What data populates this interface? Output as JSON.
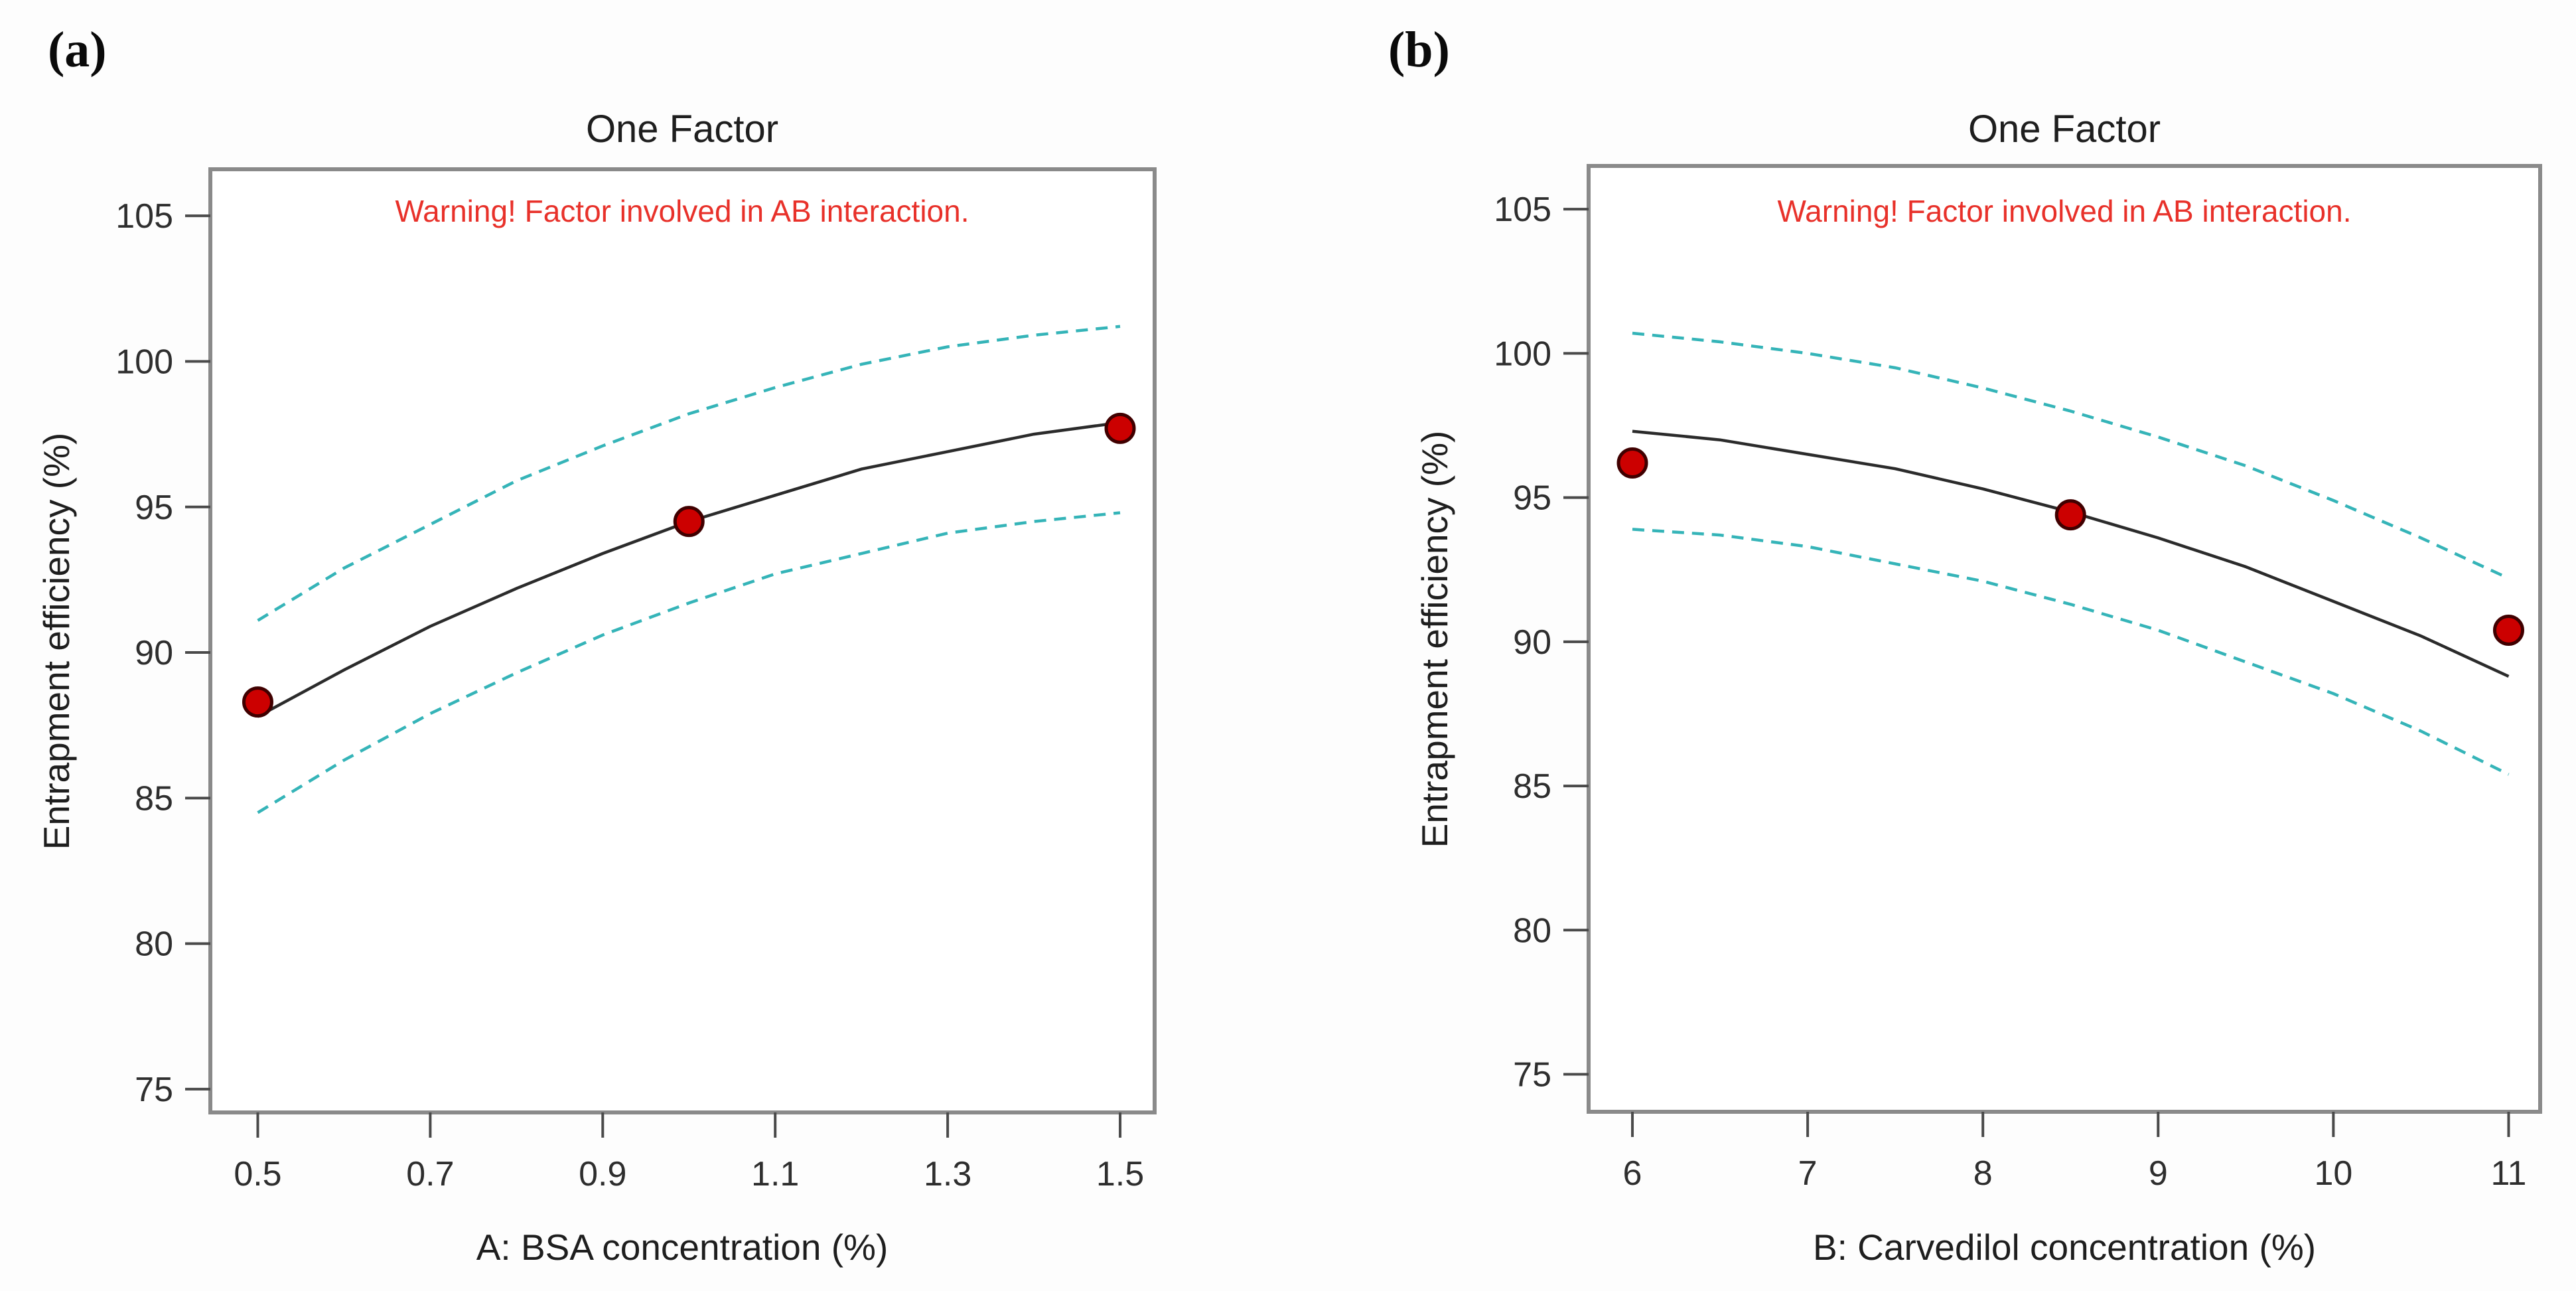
{
  "figure": {
    "background": "#fdfdfd",
    "description": "Two one-factor effect plots with confidence bands and design points"
  },
  "colors": {
    "mean_line": "#2b2b2b",
    "confidence_band": "#35b4b8",
    "design_point_fill": "#cc0000",
    "design_point_edge": "#400000",
    "warning_text": "#e8312a",
    "axis_frame": "#8a8a8a",
    "tick_text": "#2e2e2e"
  },
  "chart_data": [
    {
      "id": "a",
      "panel_label": "(a)",
      "type": "line",
      "title": "One Factor",
      "annotation": "Warning! Factor involved in AB interaction.",
      "xlabel": "A: BSA concentration (%)",
      "ylabel": "Entrapment efficiency (%)",
      "grid": "off",
      "legend": "none",
      "xlim": [
        0.445,
        1.54
      ],
      "ylim": [
        74.2,
        106.6
      ],
      "xticks": [
        0.5,
        0.7,
        0.9,
        1.1,
        1.3,
        1.5
      ],
      "xtick_labels": [
        "0.5",
        "0.7",
        "0.9",
        "1.1",
        "1.3",
        "1.5"
      ],
      "yticks": [
        75,
        80,
        85,
        90,
        95,
        100,
        105
      ],
      "ytick_labels": [
        "75",
        "80",
        "85",
        "90",
        "95",
        "100",
        "105"
      ],
      "design_points": [
        [
          0.5,
          88.3
        ],
        [
          1.0,
          94.5
        ],
        [
          1.5,
          97.7
        ]
      ],
      "series": [
        {
          "name": "predicted mean",
          "style": "solid",
          "points": [
            [
              0.5,
              87.8
            ],
            [
              0.6,
              89.4
            ],
            [
              0.7,
              90.9
            ],
            [
              0.8,
              92.2
            ],
            [
              0.9,
              93.4
            ],
            [
              1.0,
              94.5
            ],
            [
              1.1,
              95.4
            ],
            [
              1.2,
              96.3
            ],
            [
              1.3,
              96.9
            ],
            [
              1.4,
              97.5
            ],
            [
              1.5,
              97.9
            ]
          ]
        },
        {
          "name": "confidence band upper",
          "style": "dashed",
          "points": [
            [
              0.5,
              91.1
            ],
            [
              0.6,
              92.9
            ],
            [
              0.7,
              94.4
            ],
            [
              0.8,
              95.9
            ],
            [
              0.9,
              97.1
            ],
            [
              1.0,
              98.2
            ],
            [
              1.1,
              99.1
            ],
            [
              1.2,
              99.9
            ],
            [
              1.3,
              100.5
            ],
            [
              1.4,
              100.9
            ],
            [
              1.5,
              101.2
            ]
          ]
        },
        {
          "name": "confidence band lower",
          "style": "dashed",
          "points": [
            [
              0.5,
              84.5
            ],
            [
              0.6,
              86.3
            ],
            [
              0.7,
              87.9
            ],
            [
              0.8,
              89.3
            ],
            [
              0.9,
              90.6
            ],
            [
              1.0,
              91.7
            ],
            [
              1.1,
              92.7
            ],
            [
              1.2,
              93.4
            ],
            [
              1.3,
              94.1
            ],
            [
              1.4,
              94.5
            ],
            [
              1.5,
              94.8
            ]
          ]
        }
      ]
    },
    {
      "id": "b",
      "panel_label": "(b)",
      "type": "line",
      "title": "One Factor",
      "annotation": "Warning! Factor involved in AB interaction.",
      "xlabel": "B: Carvedilol concentration (%)",
      "ylabel": "Entrapment efficiency (%)",
      "grid": "off",
      "legend": "none",
      "xlim": [
        5.75,
        11.18
      ],
      "ylim": [
        73.7,
        106.5
      ],
      "xticks": [
        6,
        7,
        8,
        9,
        10,
        11
      ],
      "xtick_labels": [
        "6",
        "7",
        "8",
        "9",
        "10",
        "11"
      ],
      "yticks": [
        75,
        80,
        85,
        90,
        95,
        100,
        105
      ],
      "ytick_labels": [
        "75",
        "80",
        "85",
        "90",
        "95",
        "100",
        "105"
      ],
      "design_points": [
        [
          6,
          96.2
        ],
        [
          8.5,
          94.4
        ],
        [
          11,
          90.4
        ]
      ],
      "series": [
        {
          "name": "predicted mean",
          "style": "solid",
          "points": [
            [
              6,
              97.3
            ],
            [
              6.5,
              97.0
            ],
            [
              7,
              96.5
            ],
            [
              7.5,
              96.0
            ],
            [
              8,
              95.3
            ],
            [
              8.5,
              94.5
            ],
            [
              9,
              93.6
            ],
            [
              9.5,
              92.6
            ],
            [
              10,
              91.4
            ],
            [
              10.5,
              90.2
            ],
            [
              11,
              88.8
            ]
          ]
        },
        {
          "name": "confidence band upper",
          "style": "dashed",
          "points": [
            [
              6,
              100.7
            ],
            [
              6.5,
              100.4
            ],
            [
              7,
              100.0
            ],
            [
              7.5,
              99.5
            ],
            [
              8,
              98.8
            ],
            [
              8.5,
              98.0
            ],
            [
              9,
              97.1
            ],
            [
              9.5,
              96.1
            ],
            [
              10,
              94.9
            ],
            [
              10.5,
              93.6
            ],
            [
              11,
              92.2
            ]
          ]
        },
        {
          "name": "confidence band lower",
          "style": "dashed",
          "points": [
            [
              6,
              93.9
            ],
            [
              6.5,
              93.7
            ],
            [
              7,
              93.3
            ],
            [
              7.5,
              92.7
            ],
            [
              8,
              92.1
            ],
            [
              8.5,
              91.3
            ],
            [
              9,
              90.4
            ],
            [
              9.5,
              89.3
            ],
            [
              10,
              88.2
            ],
            [
              10.5,
              86.9
            ],
            [
              11,
              85.4
            ]
          ]
        }
      ]
    }
  ]
}
